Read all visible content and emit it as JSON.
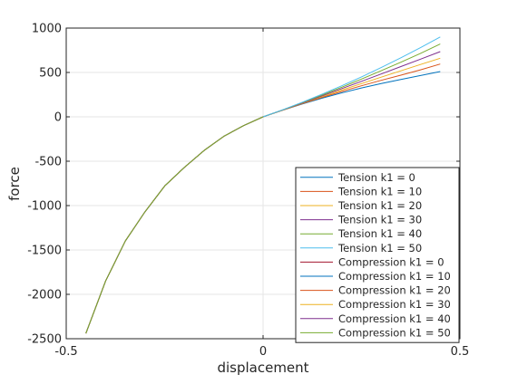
{
  "chart_data": {
    "type": "line",
    "title": "",
    "xlabel": "displacement",
    "ylabel": "force",
    "xlim": [
      -0.5,
      0.5
    ],
    "ylim": [
      -2500,
      1000
    ],
    "xticks": [
      -0.5,
      0,
      0.5
    ],
    "xtick_labels": [
      "-0.5",
      "0",
      "0.5"
    ],
    "yticks": [
      -2500,
      -2000,
      -1500,
      -1000,
      -500,
      0,
      500,
      1000
    ],
    "ytick_labels": [
      "-2500",
      "-2000",
      "-1500",
      "-1000",
      "-500",
      "0",
      "500",
      "1000"
    ],
    "grid": true,
    "legend_position": "bottom-right",
    "series": [
      {
        "name": "Tension k1 = 0",
        "color": "#0072bd",
        "x": [
          0,
          0.05,
          0.1,
          0.15,
          0.2,
          0.25,
          0.3,
          0.35,
          0.4,
          0.45
        ],
        "y": [
          0,
          75,
          145,
          210,
          270,
          325,
          375,
          420,
          465,
          510
        ]
      },
      {
        "name": "Tension k1 = 10",
        "color": "#d95319",
        "x": [
          0,
          0.05,
          0.1,
          0.15,
          0.2,
          0.25,
          0.3,
          0.35,
          0.4,
          0.45
        ],
        "y": [
          0,
          76,
          149,
          219,
          286,
          350,
          411,
          469,
          530,
          595
        ]
      },
      {
        "name": "Tension k1 = 20",
        "color": "#edb120",
        "x": [
          0,
          0.05,
          0.1,
          0.15,
          0.2,
          0.25,
          0.3,
          0.35,
          0.4,
          0.45
        ],
        "y": [
          0,
          77,
          153,
          228,
          302,
          375,
          447,
          518,
          590,
          660
        ]
      },
      {
        "name": "Tension k1 = 30",
        "color": "#7e2f8e",
        "x": [
          0,
          0.05,
          0.1,
          0.15,
          0.2,
          0.25,
          0.3,
          0.35,
          0.4,
          0.45
        ],
        "y": [
          0,
          78,
          157,
          237,
          318,
          400,
          483,
          566,
          650,
          735
        ]
      },
      {
        "name": "Tension k1 = 40",
        "color": "#77ac30",
        "x": [
          0,
          0.05,
          0.1,
          0.15,
          0.2,
          0.25,
          0.3,
          0.35,
          0.4,
          0.45
        ],
        "y": [
          0,
          79,
          161,
          246,
          334,
          425,
          519,
          615,
          715,
          820
        ]
      },
      {
        "name": "Tension k1 = 50",
        "color": "#4dbeee",
        "x": [
          0,
          0.05,
          0.1,
          0.15,
          0.2,
          0.25,
          0.3,
          0.35,
          0.4,
          0.45
        ],
        "y": [
          0,
          80,
          165,
          255,
          350,
          450,
          555,
          665,
          780,
          900
        ]
      },
      {
        "name": "Compression k1 = 0",
        "color": "#a2142f",
        "x": [
          -0.45,
          -0.4,
          -0.35,
          -0.3,
          -0.25,
          -0.2,
          -0.15,
          -0.1,
          -0.05,
          0
        ],
        "y": [
          -2440,
          -1850,
          -1400,
          -1070,
          -780,
          -570,
          -380,
          -220,
          -100,
          0
        ]
      },
      {
        "name": "Compression k1 = 10",
        "color": "#0072bd",
        "x": [
          -0.45,
          -0.4,
          -0.35,
          -0.3,
          -0.25,
          -0.2,
          -0.15,
          -0.1,
          -0.05,
          0
        ],
        "y": [
          -2440,
          -1850,
          -1400,
          -1070,
          -780,
          -570,
          -380,
          -220,
          -100,
          0
        ]
      },
      {
        "name": "Compression k1 = 20",
        "color": "#d95319",
        "x": [
          -0.45,
          -0.4,
          -0.35,
          -0.3,
          -0.25,
          -0.2,
          -0.15,
          -0.1,
          -0.05,
          0
        ],
        "y": [
          -2440,
          -1850,
          -1400,
          -1070,
          -780,
          -570,
          -380,
          -220,
          -100,
          0
        ]
      },
      {
        "name": "Compression k1 = 30",
        "color": "#edb120",
        "x": [
          -0.45,
          -0.4,
          -0.35,
          -0.3,
          -0.25,
          -0.2,
          -0.15,
          -0.1,
          -0.05,
          0
        ],
        "y": [
          -2440,
          -1850,
          -1400,
          -1070,
          -780,
          -570,
          -380,
          -220,
          -100,
          0
        ]
      },
      {
        "name": "Compression k1 = 40",
        "color": "#7e2f8e",
        "x": [
          -0.45,
          -0.4,
          -0.35,
          -0.3,
          -0.25,
          -0.2,
          -0.15,
          -0.1,
          -0.05,
          0
        ],
        "y": [
          -2440,
          -1850,
          -1400,
          -1070,
          -780,
          -570,
          -380,
          -220,
          -100,
          0
        ]
      },
      {
        "name": "Compression k1 = 50",
        "color": "#77ac30",
        "x": [
          -0.45,
          -0.4,
          -0.35,
          -0.3,
          -0.25,
          -0.2,
          -0.15,
          -0.1,
          -0.05,
          0
        ],
        "y": [
          -2440,
          -1850,
          -1400,
          -1070,
          -780,
          -570,
          -380,
          -220,
          -100,
          0
        ]
      }
    ]
  }
}
